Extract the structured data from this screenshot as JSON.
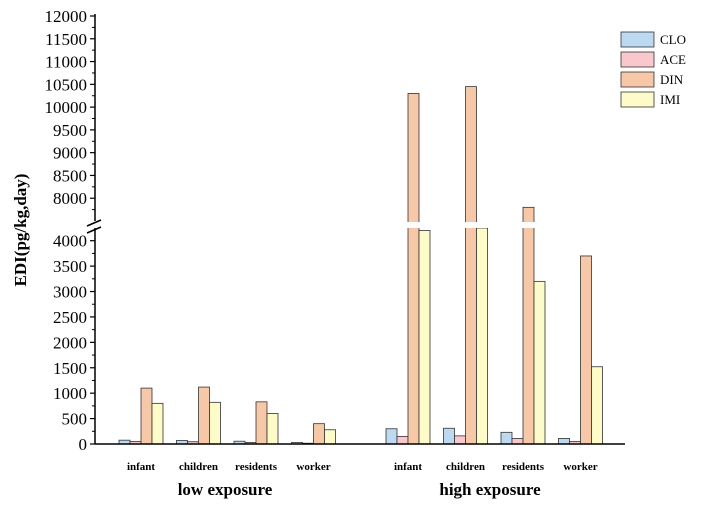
{
  "chart_data": {
    "type": "bar",
    "title": "",
    "ylabel": "EDI(pg/kg,day)",
    "xlabel": "",
    "groups": [
      "low exposure",
      "high exposure"
    ],
    "categories": [
      "infant",
      "children",
      "residents",
      "worker"
    ],
    "axis_break": {
      "lower_range": [
        0,
        4250
      ],
      "upper_range": [
        7500,
        12000
      ]
    },
    "lower_ticks": [
      0,
      500,
      1000,
      1500,
      2000,
      2500,
      3000,
      3500,
      4000
    ],
    "upper_ticks": [
      8000,
      8500,
      9000,
      9500,
      10000,
      10500,
      11000,
      11500,
      12000
    ],
    "legend_position": "top-right",
    "series": [
      {
        "name": "CLO",
        "color": "#bcd9f0",
        "values": {
          "low exposure": [
            75,
            70,
            55,
            30
          ],
          "high exposure": [
            300,
            310,
            230,
            110
          ]
        }
      },
      {
        "name": "ACE",
        "color": "#f8c8cc",
        "values": {
          "low exposure": [
            50,
            45,
            30,
            15
          ],
          "high exposure": [
            150,
            160,
            110,
            50
          ]
        }
      },
      {
        "name": "DIN",
        "color": "#f7c8a8",
        "values": {
          "low exposure": [
            1100,
            1120,
            830,
            400
          ],
          "high exposure": [
            10300,
            10450,
            7800,
            3700
          ]
        }
      },
      {
        "name": "IMI",
        "color": "#fdfbc8",
        "values": {
          "low exposure": [
            800,
            820,
            600,
            280
          ],
          "high exposure": [
            4200,
            4250,
            3200,
            1520
          ]
        }
      }
    ]
  }
}
